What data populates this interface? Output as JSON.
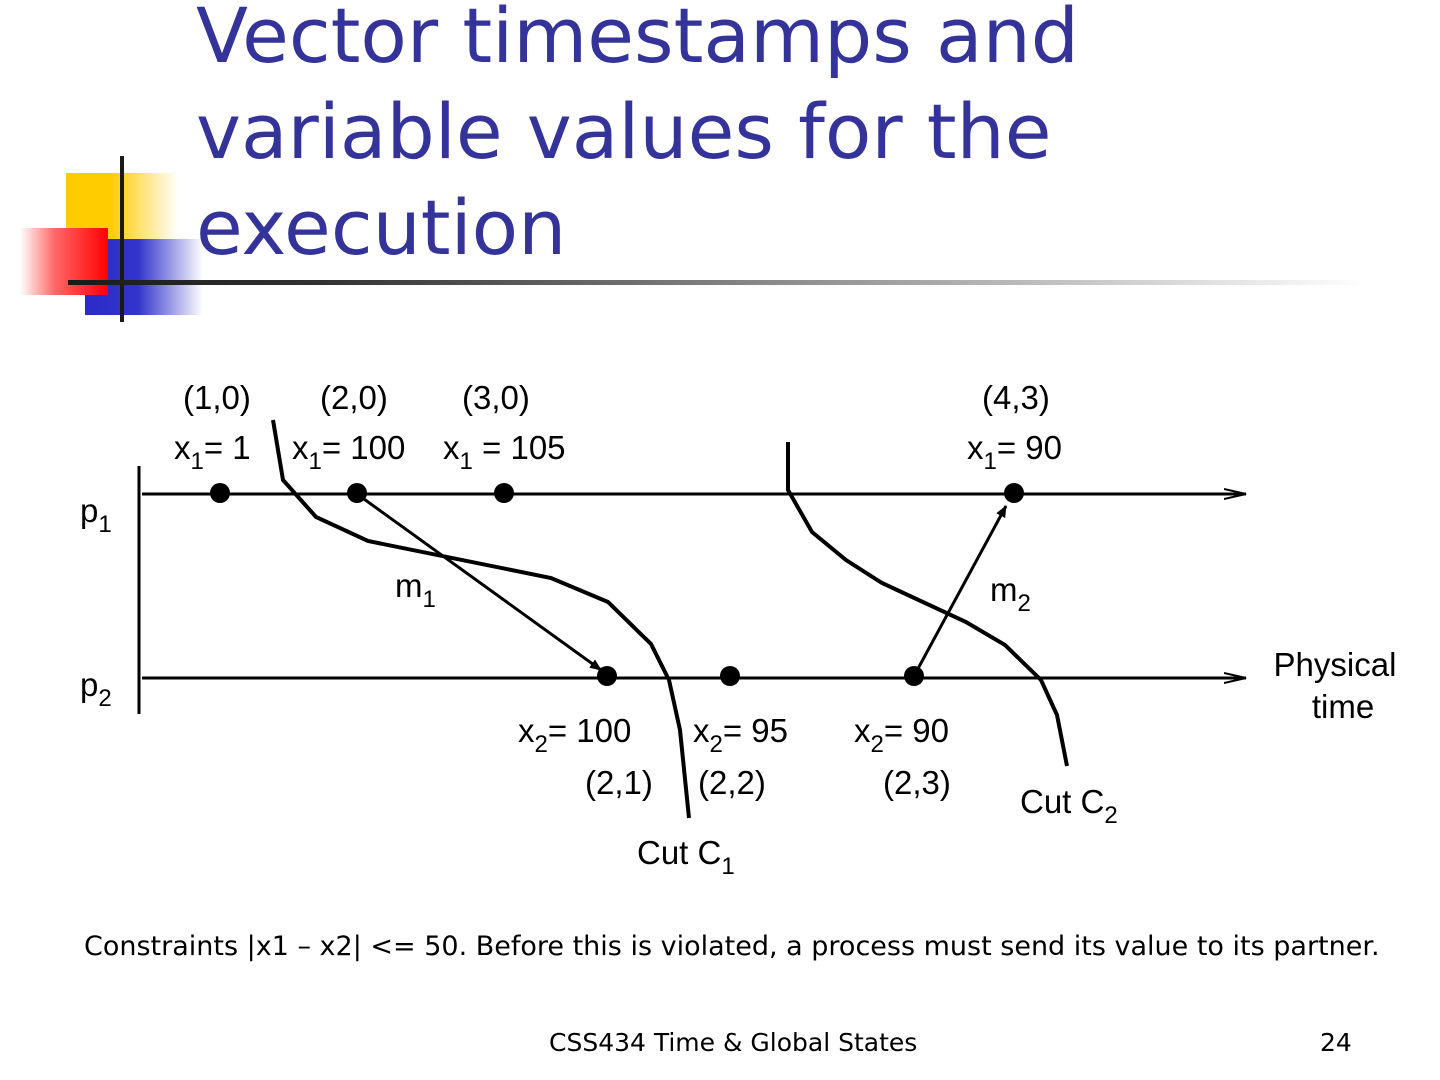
{
  "title": {
    "line1": "Vector timestamps and",
    "line2": "variable values for the",
    "line3": "execution"
  },
  "diagram": {
    "p1": {
      "name": "p",
      "sub": "1"
    },
    "p2": {
      "name": "p",
      "sub": "2"
    },
    "physical_time": {
      "line1": "Physical",
      "line2": "time"
    },
    "m1": {
      "name": "m",
      "sub": "1"
    },
    "m2": {
      "name": "m",
      "sub": "2"
    },
    "cut1": {
      "name": "Cut C",
      "sub": "1"
    },
    "cut2": {
      "name": "Cut C",
      "sub": "2"
    },
    "p1_events": [
      {
        "ts": "(1,0)",
        "var": "x",
        "sub": "1",
        "val": "= 1"
      },
      {
        "ts": "(2,0)",
        "var": "x",
        "sub": "1",
        "val": "= 100"
      },
      {
        "ts": "(3,0)",
        "var": "x",
        "sub": "1",
        "val": " = 105"
      },
      {
        "ts": "(4,3)",
        "var": "x",
        "sub": "1",
        "val": "= 90"
      }
    ],
    "p2_events": [
      {
        "ts": "(2,1)",
        "var": "x",
        "sub": "2",
        "val": "= 100"
      },
      {
        "ts": "(2,2)",
        "var": "x",
        "sub": "2",
        "val": "= 95"
      },
      {
        "ts": "(2,3)",
        "var": "x",
        "sub": "2",
        "val": "= 90"
      }
    ]
  },
  "note": "Constraints |x1 – x2| <= 50. Before this is violated, a process must send its value to its partner.",
  "footer": {
    "title": "CSS434 Time & Global States",
    "page": "24"
  }
}
